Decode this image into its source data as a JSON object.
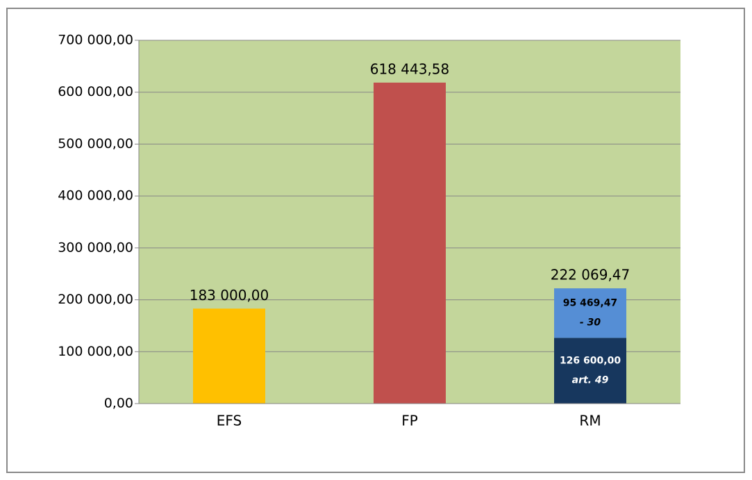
{
  "chart_data": {
    "type": "bar",
    "stacked": true,
    "categories": [
      "EFS",
      "FP",
      "RM"
    ],
    "series": [
      {
        "colors": [
          "#ffc000",
          "#c0504d",
          "#17375e"
        ],
        "values": [
          183000,
          618443.58,
          126600
        ],
        "value_labels": [
          "183 000,00",
          "618 443,58",
          "126 600,00"
        ],
        "notes": [
          null,
          null,
          "art. 49"
        ]
      },
      {
        "colors": [
          null,
          null,
          "#558ed5"
        ],
        "values": [
          null,
          null,
          95469.47
        ],
        "value_labels": [
          null,
          null,
          "95 469,47"
        ],
        "notes": [
          null,
          null,
          "- 30"
        ]
      }
    ],
    "totals": [
      null,
      null,
      222069.47
    ],
    "total_labels": [
      null,
      null,
      "222 069,47"
    ],
    "ylim": [
      0,
      700000
    ],
    "yticks": [
      {
        "value": 0,
        "label": "0,00"
      },
      {
        "value": 100000,
        "label": "100 000,00"
      },
      {
        "value": 200000,
        "label": "200 000,00"
      },
      {
        "value": 300000,
        "label": "300 000,00"
      },
      {
        "value": 400000,
        "label": "400 000,00"
      },
      {
        "value": 500000,
        "label": "500 000,00"
      },
      {
        "value": 600000,
        "label": "600 000,00"
      },
      {
        "value": 700000,
        "label": "700 000,00"
      }
    ],
    "grid": true,
    "plot_background": "#c3d69b"
  }
}
